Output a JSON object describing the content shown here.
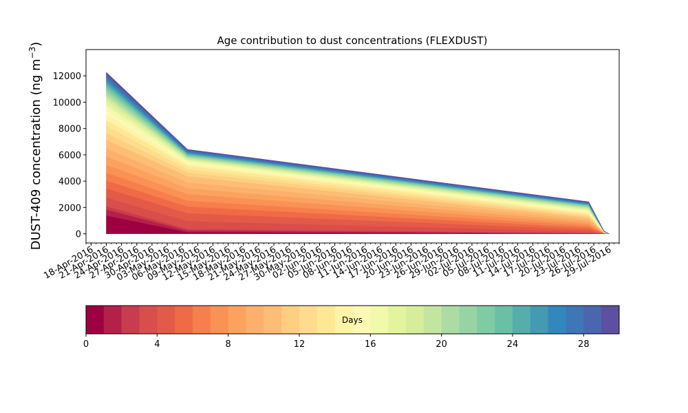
{
  "chart_data": {
    "type": "area",
    "stacked": true,
    "title": "Age contribution to dust concentrations (FLEXDUST)",
    "ylabel": "DUST-409 concentration (ng m",
    "ylabel_exponent": "−3",
    "ylabel_close": ")",
    "ylim": [
      -700,
      14000
    ],
    "yticks": [
      0,
      2000,
      4000,
      6000,
      8000,
      10000,
      12000
    ],
    "xlim": [
      "2016-04-17",
      "2016-07-31"
    ],
    "x_tick_dates": [
      "2016-04-18",
      "2016-04-21",
      "2016-04-24",
      "2016-04-27",
      "2016-04-30",
      "2016-05-03",
      "2016-05-06",
      "2016-05-09",
      "2016-05-12",
      "2016-05-15",
      "2016-05-18",
      "2016-05-21",
      "2016-05-24",
      "2016-05-27",
      "2016-05-30",
      "2016-06-02",
      "2016-06-05",
      "2016-06-08",
      "2016-06-11",
      "2016-06-14",
      "2016-06-17",
      "2016-06-20",
      "2016-06-23",
      "2016-06-26",
      "2016-06-29",
      "2016-07-02",
      "2016-07-05",
      "2016-07-08",
      "2016-07-11",
      "2016-07-14",
      "2016-07-17",
      "2016-07-20",
      "2016-07-23",
      "2016-07-26",
      "2016-07-29"
    ],
    "x_tick_labels": [
      "18-Apr-2016",
      "21-Apr-2016",
      "24-Apr-2016",
      "27-Apr-2016",
      "30-Apr-2016",
      "03-May-2016",
      "06-May-2016",
      "09-May-2016",
      "12-May-2016",
      "15-May-2016",
      "18-May-2016",
      "21-May-2016",
      "24-May-2016",
      "27-May-2016",
      "30-May-2016",
      "02-Jun-2016",
      "05-Jun-2016",
      "08-Jun-2016",
      "11-Jun-2016",
      "14-Jun-2016",
      "17-Jun-2016",
      "20-Jun-2016",
      "23-Jun-2016",
      "26-Jun-2016",
      "29-Jun-2016",
      "02-Jul-2016",
      "05-Jul-2016",
      "08-Jul-2016",
      "11-Jul-2016",
      "14-Jul-2016",
      "17-Jul-2016",
      "20-Jul-2016",
      "23-Jul-2016",
      "26-Jul-2016",
      "29-Jul-2016"
    ],
    "x": [
      "2016-04-21",
      "2016-05-07",
      "2016-07-25",
      "2016-07-28",
      "2016-07-29"
    ],
    "series": [
      {
        "values": [
          1400,
          130,
          20,
          5,
          0
        ]
      },
      {
        "values": [
          450,
          120,
          20,
          5,
          0
        ]
      },
      {
        "values": [
          250,
          120,
          20,
          5,
          0
        ]
      },
      {
        "values": [
          650,
          600,
          120,
          10,
          0
        ]
      },
      {
        "values": [
          700,
          600,
          150,
          10,
          0
        ]
      },
      {
        "values": [
          600,
          500,
          150,
          10,
          0
        ]
      },
      {
        "values": [
          600,
          450,
          150,
          10,
          0
        ]
      },
      {
        "values": [
          600,
          500,
          150,
          10,
          0
        ]
      },
      {
        "values": [
          650,
          450,
          150,
          10,
          0
        ]
      },
      {
        "values": [
          600,
          450,
          150,
          10,
          0
        ]
      },
      {
        "values": [
          650,
          450,
          150,
          10,
          0
        ]
      },
      {
        "values": [
          500,
          300,
          100,
          10,
          0
        ]
      },
      {
        "values": [
          550,
          250,
          100,
          10,
          0
        ]
      },
      {
        "values": [
          450,
          250,
          100,
          10,
          0
        ]
      },
      {
        "values": [
          400,
          150,
          100,
          10,
          0
        ]
      },
      {
        "values": [
          400,
          150,
          80,
          10,
          0
        ]
      },
      {
        "values": [
          350,
          100,
          80,
          5,
          0
        ]
      },
      {
        "values": [
          300,
          80,
          80,
          5,
          0
        ]
      },
      {
        "values": [
          250,
          80,
          60,
          5,
          0
        ]
      },
      {
        "values": [
          200,
          80,
          60,
          5,
          0
        ]
      },
      {
        "values": [
          200,
          60,
          60,
          5,
          0
        ]
      },
      {
        "values": [
          200,
          60,
          60,
          5,
          0
        ]
      },
      {
        "values": [
          180,
          60,
          40,
          5,
          0
        ]
      },
      {
        "values": [
          180,
          60,
          40,
          5,
          0
        ]
      },
      {
        "values": [
          180,
          60,
          40,
          5,
          0
        ]
      },
      {
        "values": [
          160,
          60,
          40,
          5,
          0
        ]
      },
      {
        "values": [
          160,
          60,
          40,
          5,
          0
        ]
      },
      {
        "values": [
          160,
          60,
          40,
          5,
          0
        ]
      },
      {
        "values": [
          150,
          60,
          40,
          5,
          0
        ]
      },
      {
        "values": [
          150,
          60,
          40,
          5,
          0
        ]
      }
    ],
    "colors": [
      "#9e0142",
      "#b5204a",
      "#c93c4d",
      "#d94e4b",
      "#e45a48",
      "#ef6a45",
      "#f67f4b",
      "#fa9155",
      "#fca25f",
      "#fdb06b",
      "#fdbe74",
      "#fece81",
      "#fedb8e",
      "#fee893",
      "#fff3a7",
      "#fbf9b3",
      "#f2f9ab",
      "#e4f49e",
      "#d6ee9b",
      "#c2e69f",
      "#aadca3",
      "#97d4a4",
      "#7fcba4",
      "#6ac0a5",
      "#55aeab",
      "#4499b3",
      "#3288bd",
      "#3e76b6",
      "#4a66ae",
      "#5e4fa2"
    ],
    "colorbar": {
      "label": "Days",
      "min": 0,
      "max": 30,
      "ticks": [
        0,
        4,
        8,
        12,
        16,
        20,
        24,
        28
      ]
    }
  }
}
